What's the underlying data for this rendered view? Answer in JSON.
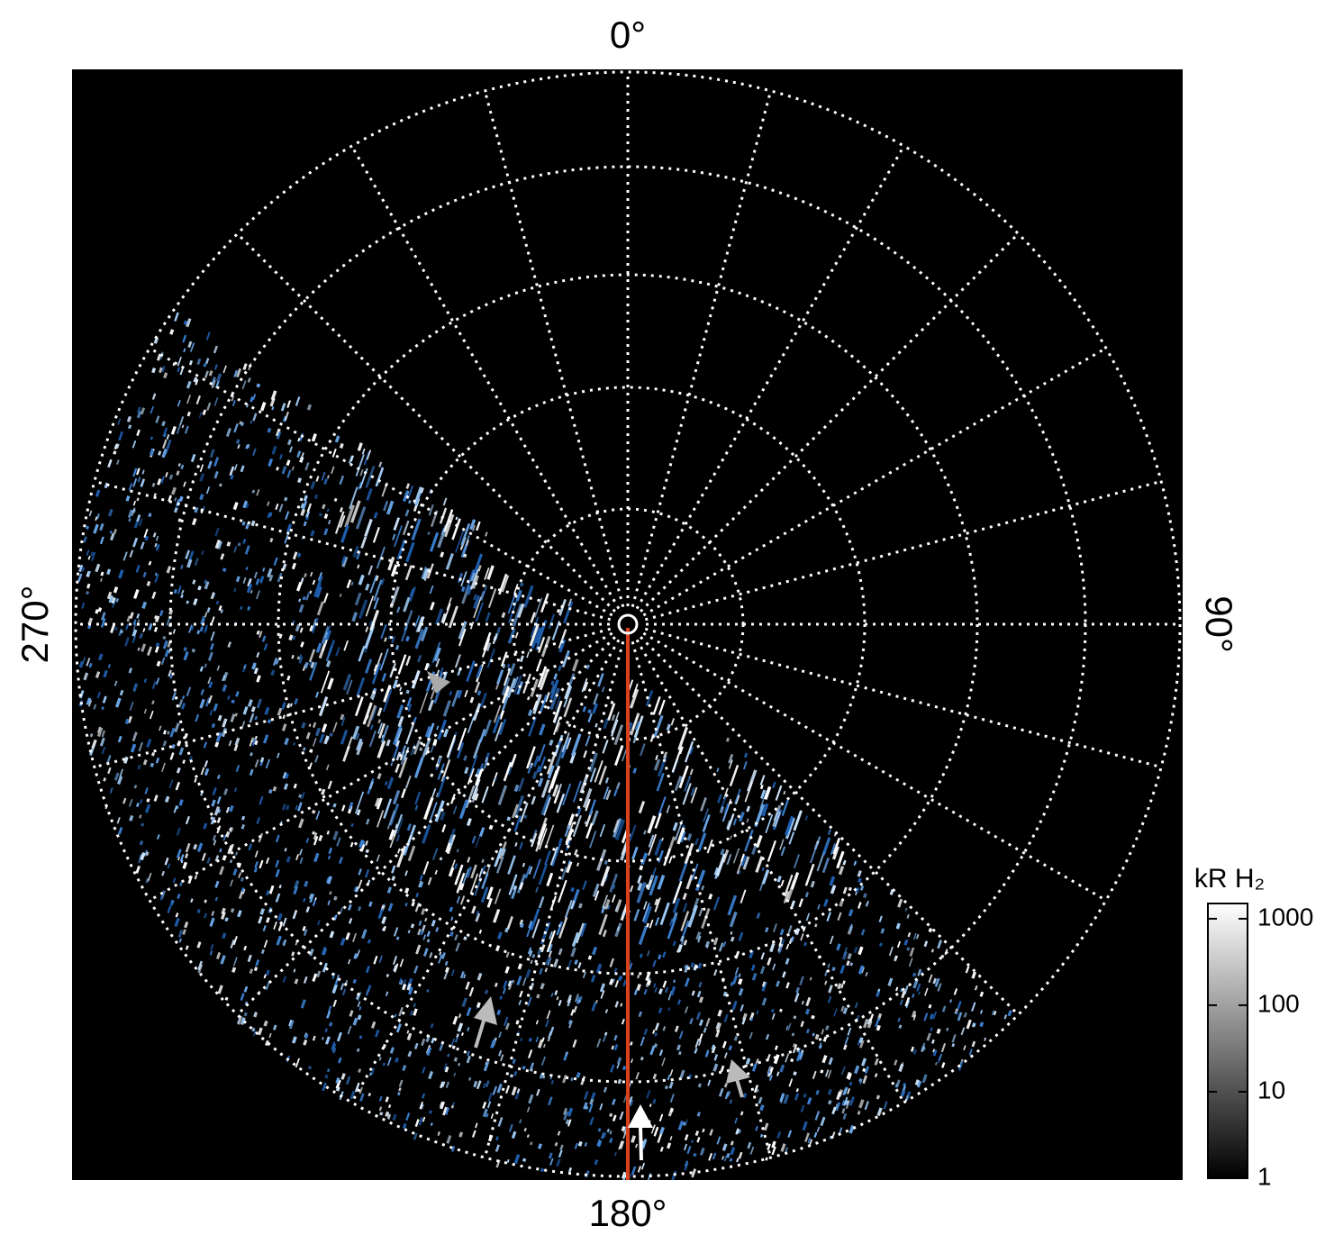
{
  "chart_data": {
    "type": "polar-image",
    "angle_labels": [
      "0°",
      "90°",
      "180°",
      "270°"
    ],
    "colorbar": {
      "label": "kR H₂",
      "log_scale": true,
      "lim": [
        1,
        1500
      ],
      "ticks": [
        1,
        10,
        100,
        1000
      ]
    }
  }
}
